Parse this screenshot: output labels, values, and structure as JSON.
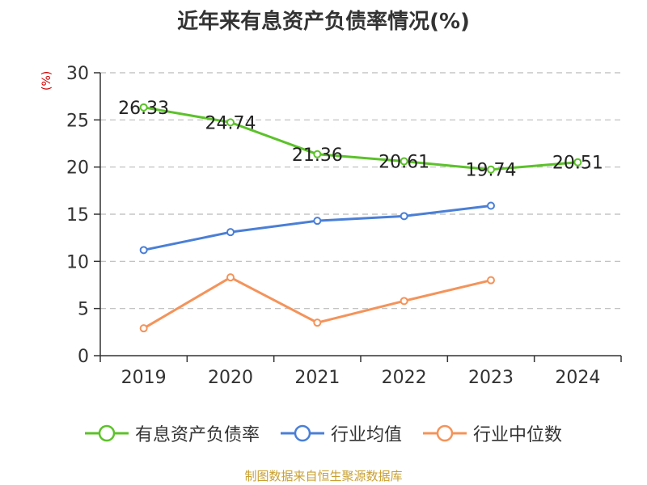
{
  "title": "近年来有息资产负债率情况(%)",
  "unit_label": "(%)",
  "source": "制图数据来自恒生聚源数据库",
  "chart_data": {
    "type": "line",
    "title": "近年来有息资产负债率情况(%)",
    "ylabel": "(%)",
    "xlabel": "",
    "categories": [
      "2019",
      "2020",
      "2021",
      "2022",
      "2023",
      "2024"
    ],
    "ylim": [
      0,
      30
    ],
    "yticks": [
      0,
      5,
      10,
      15,
      20,
      25,
      30
    ],
    "grid": true,
    "legend": "bottom",
    "series": [
      {
        "name": "有息资产负债率",
        "color": "#5cc22a",
        "values": [
          26.33,
          24.74,
          21.36,
          20.61,
          19.74,
          20.51
        ],
        "labels": [
          "26.33",
          "24.74",
          "21.36",
          "20.61",
          "19.74",
          "20.51"
        ]
      },
      {
        "name": "行业均值",
        "color": "#4a7fd6",
        "values": [
          11.2,
          13.1,
          14.3,
          14.8,
          15.9,
          null
        ]
      },
      {
        "name": "行业中位数",
        "color": "#f4935a",
        "values": [
          2.9,
          8.3,
          3.5,
          5.8,
          8.0,
          null
        ]
      }
    ]
  }
}
